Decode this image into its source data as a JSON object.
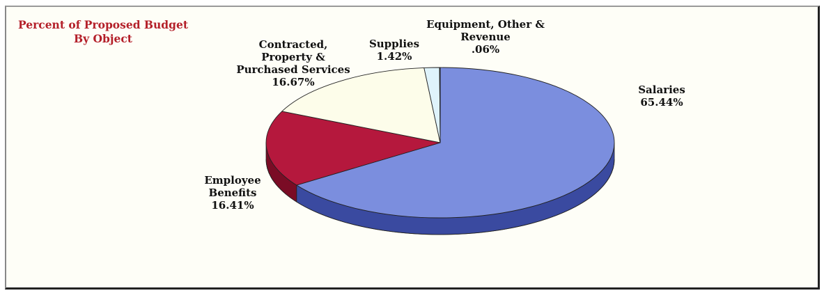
{
  "chart_data": {
    "type": "pie",
    "title": "Percent of  Proposed Budget",
    "subtitle": "By Object",
    "slices": [
      {
        "label_lines": [
          "Salaries",
          "65.44%"
        ],
        "value": 65.44,
        "color": "#7b8ede",
        "side": "#3a4aa0"
      },
      {
        "label_lines": [
          "Employee",
          "Benefits",
          "16.41%"
        ],
        "value": 16.41,
        "color": "#b5183d",
        "side": "#7a0c25"
      },
      {
        "label_lines": [
          "Contracted,",
          "Property &",
          "Purchased Services",
          "16.67%"
        ],
        "value": 16.67,
        "color": "#fdfdea",
        "side": "#c8c8b0"
      },
      {
        "label_lines": [
          "Supplies",
          "1.42%"
        ],
        "value": 1.42,
        "color": "#dff3fb",
        "side": "#9ab8c4"
      },
      {
        "label_lines": [
          "Equipment, Other &",
          "Revenue",
          ".06%"
        ],
        "value": 0.06,
        "color": "#6b1020",
        "side": "#3a0810"
      }
    ]
  }
}
